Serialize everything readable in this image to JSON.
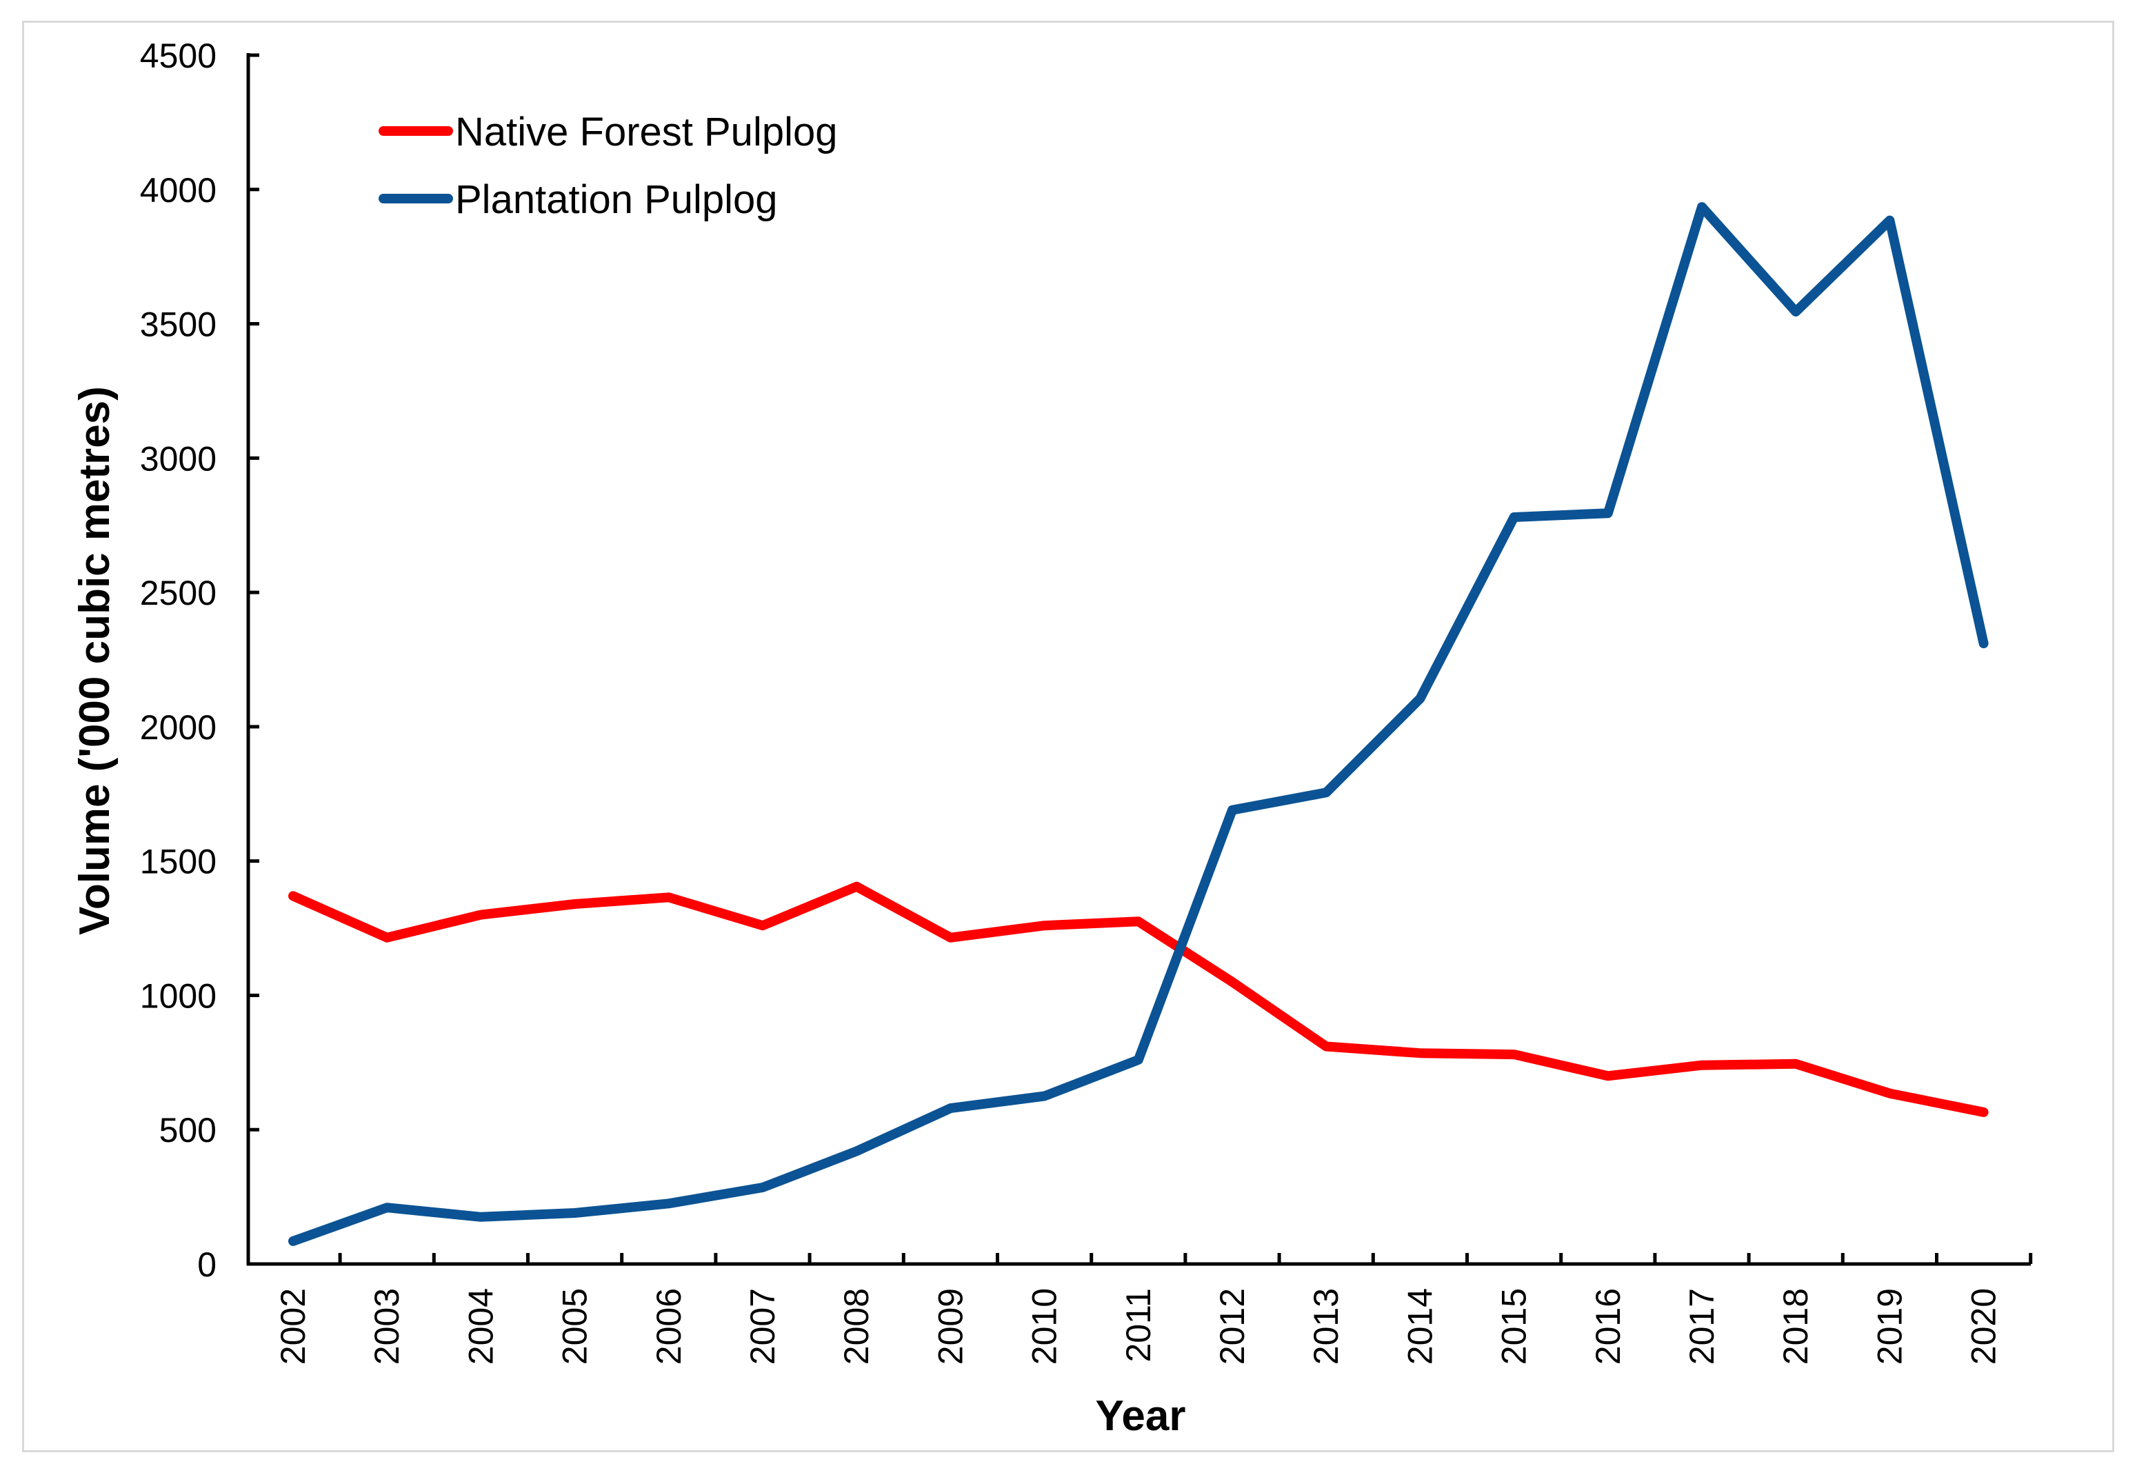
{
  "chart_data": {
    "type": "line",
    "title": "",
    "xlabel": "Year",
    "ylabel": "Volume ('000 cubic metres)",
    "ylim": [
      0,
      4500
    ],
    "yticks": [
      "0",
      "500",
      "1000",
      "1500",
      "2000",
      "2500",
      "3000",
      "3500",
      "4000",
      "4500"
    ],
    "grid": false,
    "legend_position": "top-left",
    "categories": [
      "2002",
      "2003",
      "2004",
      "2005",
      "2006",
      "2007",
      "2008",
      "2009",
      "2010",
      "2011",
      "2012",
      "2013",
      "2014",
      "2015",
      "2016",
      "2017",
      "2018",
      "2019",
      "2020"
    ],
    "series": [
      {
        "name": "Native Forest Pulplog",
        "color": "#ff0000",
        "values": [
          1370,
          1215,
          1300,
          1340,
          1365,
          1260,
          1405,
          1215,
          1260,
          1275,
          1050,
          810,
          785,
          780,
          700,
          740,
          745,
          635,
          565
        ]
      },
      {
        "name": "Plantation Pulplog",
        "color": "#0b5394",
        "values": [
          85,
          210,
          175,
          190,
          225,
          285,
          420,
          580,
          625,
          760,
          1690,
          1755,
          2105,
          2780,
          2795,
          3935,
          3545,
          3885,
          2310
        ]
      }
    ]
  }
}
